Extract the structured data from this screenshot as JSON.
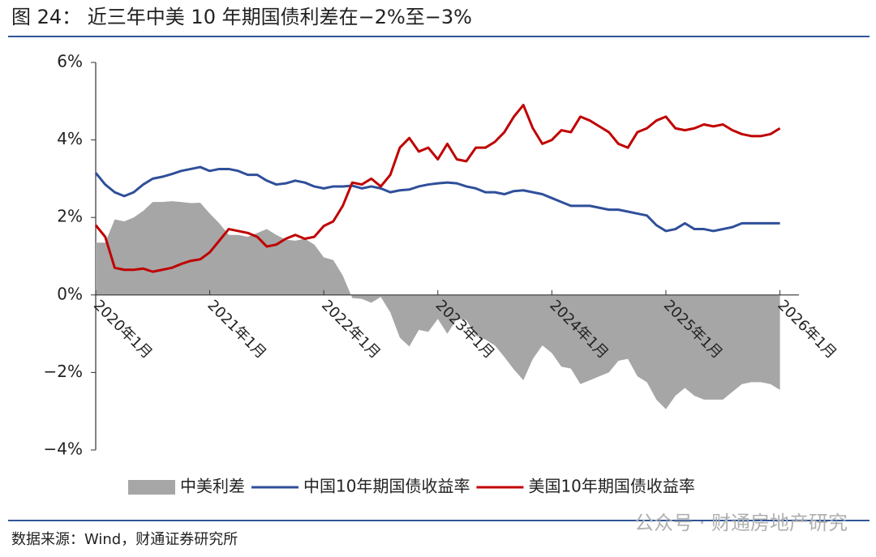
{
  "chart_data": {
    "type": "line",
    "title": "图 24： 近三年中美 10 年期国债利差在−2%至−3%",
    "source": "数据来源：Wind，财通证券研究所",
    "watermark": "公众号 · 财通房地产研究",
    "x": [
      "2020-01",
      "2020-02",
      "2020-03",
      "2020-04",
      "2020-05",
      "2020-06",
      "2020-07",
      "2020-08",
      "2020-09",
      "2020-10",
      "2020-11",
      "2020-12",
      "2021-01",
      "2021-02",
      "2021-03",
      "2021-04",
      "2021-05",
      "2021-06",
      "2021-07",
      "2021-08",
      "2021-09",
      "2021-10",
      "2021-11",
      "2021-12",
      "2022-01",
      "2022-02",
      "2022-03",
      "2022-04",
      "2022-05",
      "2022-06",
      "2022-07",
      "2022-08",
      "2022-09",
      "2022-10",
      "2022-11",
      "2022-12",
      "2023-01",
      "2023-02",
      "2023-03",
      "2023-04",
      "2023-05",
      "2023-06",
      "2023-07",
      "2023-08",
      "2023-09",
      "2023-10",
      "2023-11",
      "2023-12",
      "2024-01",
      "2024-02",
      "2024-03",
      "2024-04",
      "2024-05",
      "2024-06",
      "2024-07",
      "2024-08",
      "2024-09",
      "2024-10",
      "2024-11",
      "2024-12",
      "2025-01",
      "2025-02",
      "2025-03",
      "2025-04",
      "2025-05",
      "2025-06",
      "2025-07",
      "2025-08",
      "2025-09",
      "2025-10",
      "2025-11",
      "2025-12",
      "2026-01"
    ],
    "series": [
      {
        "name": "中美利差",
        "color": "#a6a6a6",
        "style": "area",
        "values": [
          1.35,
          1.35,
          1.95,
          1.9,
          2.0,
          2.17,
          2.4,
          2.4,
          2.42,
          2.4,
          2.37,
          2.38,
          2.1,
          1.85,
          1.55,
          1.55,
          1.5,
          1.6,
          1.7,
          1.55,
          1.43,
          1.4,
          1.45,
          1.3,
          0.97,
          0.9,
          0.5,
          -0.08,
          -0.1,
          -0.2,
          -0.05,
          -0.45,
          -1.1,
          -1.33,
          -0.9,
          -0.95,
          -0.62,
          -1.0,
          -0.62,
          -0.65,
          -1.05,
          -1.15,
          -1.3,
          -1.6,
          -1.92,
          -2.2,
          -1.65,
          -1.3,
          -1.5,
          -1.85,
          -1.9,
          -2.3,
          -2.2,
          -2.1,
          -2.0,
          -1.7,
          -1.65,
          -2.1,
          -2.25,
          -2.7,
          -2.95,
          -2.6,
          -2.4,
          -2.6,
          -2.7,
          -2.7,
          -2.7,
          -2.5,
          -2.3,
          -2.25,
          -2.25,
          -2.3,
          -2.45
        ]
      },
      {
        "name": "中国10年期国债收益率",
        "color": "#2f4f9a",
        "style": "line",
        "values": [
          3.15,
          2.85,
          2.65,
          2.55,
          2.65,
          2.85,
          3.0,
          3.05,
          3.12,
          3.2,
          3.25,
          3.3,
          3.2,
          3.25,
          3.25,
          3.2,
          3.1,
          3.1,
          2.95,
          2.85,
          2.88,
          2.95,
          2.9,
          2.8,
          2.75,
          2.8,
          2.8,
          2.82,
          2.75,
          2.8,
          2.75,
          2.65,
          2.7,
          2.72,
          2.8,
          2.85,
          2.88,
          2.9,
          2.88,
          2.8,
          2.75,
          2.65,
          2.65,
          2.6,
          2.68,
          2.7,
          2.65,
          2.6,
          2.5,
          2.4,
          2.3,
          2.3,
          2.3,
          2.25,
          2.2,
          2.2,
          2.15,
          2.1,
          2.05,
          1.8,
          1.65,
          1.7,
          1.85,
          1.7,
          1.7,
          1.65,
          1.7,
          1.75,
          1.85,
          1.85,
          1.85,
          1.85,
          1.85
        ]
      },
      {
        "name": "美国10年期国债收益率",
        "color": "#c00000",
        "style": "line",
        "values": [
          1.8,
          1.5,
          0.7,
          0.65,
          0.65,
          0.68,
          0.6,
          0.65,
          0.7,
          0.8,
          0.88,
          0.92,
          1.1,
          1.4,
          1.7,
          1.65,
          1.6,
          1.5,
          1.25,
          1.3,
          1.45,
          1.55,
          1.45,
          1.5,
          1.78,
          1.9,
          2.3,
          2.9,
          2.85,
          3.0,
          2.8,
          3.1,
          3.8,
          4.05,
          3.7,
          3.8,
          3.5,
          3.9,
          3.5,
          3.45,
          3.8,
          3.8,
          3.95,
          4.2,
          4.6,
          4.9,
          4.3,
          3.9,
          4.0,
          4.25,
          4.2,
          4.6,
          4.5,
          4.35,
          4.2,
          3.9,
          3.8,
          4.2,
          4.3,
          4.5,
          4.6,
          4.3,
          4.25,
          4.3,
          4.4,
          4.35,
          4.4,
          4.25,
          4.15,
          4.1,
          4.1,
          4.15,
          4.3
        ]
      }
    ],
    "xlim": [
      "2020-01",
      "2026-03"
    ],
    "xticks": [
      {
        "value": "2020-01",
        "label": "2020年1月"
      },
      {
        "value": "2021-01",
        "label": "2021年1月"
      },
      {
        "value": "2022-01",
        "label": "2022年1月"
      },
      {
        "value": "2023-01",
        "label": "2023年1月"
      },
      {
        "value": "2024-01",
        "label": "2024年1月"
      },
      {
        "value": "2025-01",
        "label": "2025年1月"
      },
      {
        "value": "2026-01",
        "label": "2026年1月"
      }
    ],
    "ylim": [
      -4,
      6
    ],
    "yticks": [
      {
        "value": -4,
        "label": "−4%"
      },
      {
        "value": -2,
        "label": "−2%"
      },
      {
        "value": 0,
        "label": "0%"
      },
      {
        "value": 2,
        "label": "2%"
      },
      {
        "value": 4,
        "label": "4%"
      },
      {
        "value": 6,
        "label": "6%"
      }
    ],
    "legend": "bottom"
  }
}
